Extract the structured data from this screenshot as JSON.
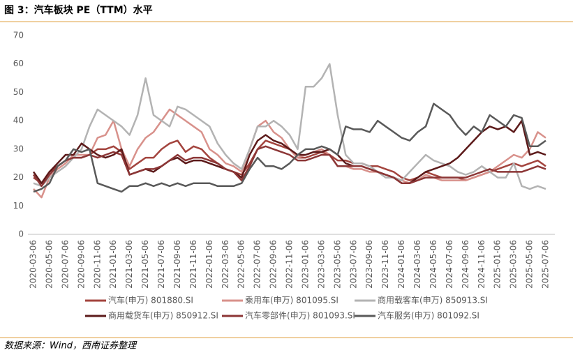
{
  "chart_data": {
    "type": "line",
    "title": "图 3：汽车板块 PE（TTM）水平",
    "source": "数据来源：Wind，西南证券整理",
    "categories": [
      "2020-03-06",
      null,
      "2020-05-06",
      null,
      "2020-07-06",
      null,
      "2020-09-06",
      null,
      "2020-11-06",
      null,
      "2021-01-06",
      null,
      "2021-03-06",
      null,
      "2021-05-06",
      null,
      "2021-07-06",
      null,
      "2021-09-06",
      null,
      "2021-11-06",
      null,
      "2022-01-06",
      null,
      "2022-03-06",
      null,
      "2022-05-06",
      null,
      "2022-07-06",
      null,
      "2022-09-06",
      null,
      "2022-11-06",
      null,
      "2023-01-06",
      null,
      "2023-03-06",
      null,
      "2023-05-06",
      null,
      "2023-07-06",
      null,
      "2023-09-06",
      null,
      "2023-11-06",
      null,
      "2024-01-06",
      null,
      "2024-03-06",
      null,
      "2024-05-06",
      null,
      "2024-07-06",
      null,
      "2024-09-06",
      null,
      "2024-11-06",
      null,
      "2025-01-06",
      null,
      "2025-03-06",
      null,
      "2025-05-06",
      null,
      "2025-07-06"
    ],
    "series": [
      {
        "name": "汽车(申万) 801880.SI",
        "color": "#a3443e",
        "values": [
          20,
          18,
          22,
          24,
          26,
          27,
          27,
          28,
          30,
          30,
          31,
          29,
          23,
          25,
          27,
          27,
          30,
          32,
          33,
          29,
          31,
          30,
          27,
          25,
          23,
          22,
          21,
          25,
          30,
          33,
          32,
          31,
          30,
          27,
          27,
          28,
          29,
          28,
          26,
          26,
          25,
          25,
          24,
          24,
          23,
          22,
          20,
          19,
          20,
          22,
          21,
          20,
          20,
          20,
          19,
          20,
          21,
          22,
          23,
          24,
          25,
          24,
          25,
          26,
          24
        ]
      },
      {
        "name": "乘用车(申万) 801095.SI",
        "color": "#d8918b",
        "values": [
          16,
          13,
          20,
          23,
          25,
          28,
          28,
          28,
          34,
          35,
          40,
          30,
          24,
          30,
          34,
          36,
          40,
          44,
          42,
          40,
          38,
          36,
          30,
          28,
          25,
          24,
          22,
          30,
          38,
          40,
          36,
          34,
          30,
          27,
          28,
          29,
          30,
          28,
          24,
          24,
          23,
          23,
          22,
          22,
          21,
          20,
          19,
          18,
          19,
          21,
          20,
          19,
          19,
          19,
          19,
          20,
          21,
          22,
          24,
          26,
          28,
          27,
          30,
          36,
          34
        ]
      },
      {
        "name": "商用载客车(申万) 850913.SI",
        "color": "#b3b3b3",
        "values": [
          18,
          17,
          20,
          22,
          24,
          27,
          30,
          38,
          44,
          42,
          40,
          38,
          35,
          42,
          55,
          42,
          40,
          38,
          45,
          44,
          42,
          40,
          38,
          32,
          28,
          25,
          23,
          30,
          38,
          38,
          40,
          38,
          35,
          30,
          52,
          52,
          55,
          60,
          42,
          28,
          25,
          25,
          24,
          22,
          20,
          20,
          19,
          22,
          25,
          28,
          26,
          25,
          24,
          22,
          21,
          22,
          24,
          22,
          20,
          20,
          25,
          17,
          16,
          17,
          16
        ]
      },
      {
        "name": "商用载货车(申万) 850912.SI",
        "color": "#5c1a1a",
        "values": [
          22,
          18,
          22,
          25,
          28,
          28,
          32,
          30,
          28,
          27,
          28,
          30,
          21,
          22,
          23,
          22,
          24,
          26,
          27,
          25,
          26,
          26,
          25,
          24,
          23,
          22,
          20,
          28,
          33,
          35,
          33,
          32,
          30,
          28,
          28,
          29,
          29,
          30,
          28,
          25,
          24,
          24,
          23,
          22,
          21,
          20,
          18,
          18,
          20,
          22,
          23,
          24,
          25,
          27,
          30,
          33,
          36,
          38,
          37,
          38,
          36,
          40,
          28,
          29,
          28
        ]
      },
      {
        "name": "汽车零部件(申万) 801093.SI",
        "color": "#8c3636",
        "values": [
          21,
          17,
          21,
          24,
          26,
          27,
          27,
          28,
          27,
          28,
          29,
          28,
          21,
          22,
          23,
          23,
          24,
          26,
          28,
          26,
          27,
          27,
          26,
          25,
          23,
          22,
          19,
          24,
          30,
          31,
          30,
          29,
          28,
          26,
          26,
          27,
          28,
          28,
          24,
          24,
          24,
          24,
          23,
          22,
          21,
          20,
          18,
          18,
          19,
          20,
          20,
          20,
          20,
          20,
          20,
          21,
          22,
          23,
          22,
          22,
          22,
          22,
          23,
          24,
          23
        ]
      },
      {
        "name": "汽车服务(申万) 801092.SI",
        "color": "#595959",
        "values": [
          15,
          16,
          18,
          24,
          26,
          30,
          29,
          30,
          18,
          17,
          16,
          15,
          17,
          17,
          18,
          17,
          18,
          17,
          18,
          17,
          18,
          18,
          18,
          17,
          17,
          17,
          18,
          23,
          27,
          24,
          24,
          23,
          25,
          28,
          30,
          30,
          31,
          30,
          28,
          38,
          37,
          37,
          36,
          40,
          38,
          36,
          34,
          33,
          36,
          38,
          46,
          44,
          42,
          38,
          35,
          38,
          36,
          42,
          40,
          38,
          42,
          41,
          31,
          31,
          33
        ]
      }
    ],
    "ylim": [
      0,
      70
    ],
    "yticks": [
      0,
      10,
      20,
      30,
      40,
      50,
      60,
      70
    ],
    "grid": false
  }
}
